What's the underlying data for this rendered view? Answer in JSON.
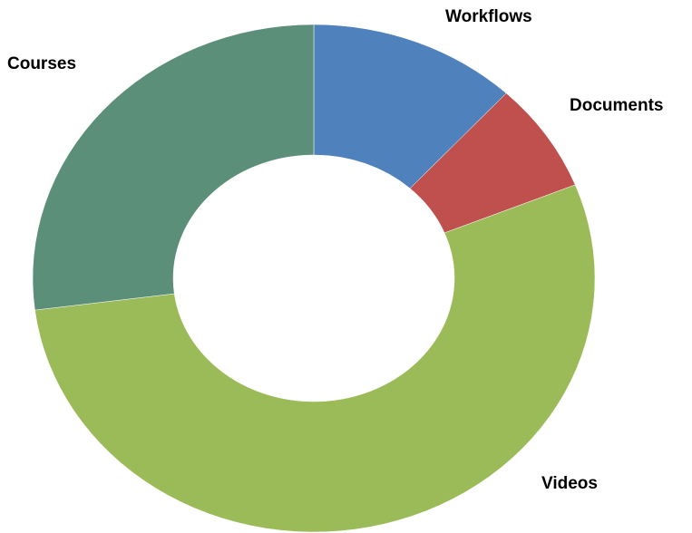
{
  "chart_data": {
    "type": "donut",
    "categories": [
      "Workflows",
      "Documents",
      "Videos",
      "Courses"
    ],
    "values": [
      12,
      7,
      54,
      27
    ],
    "colors": [
      "#4f81bd",
      "#c0504d",
      "#9bbb59",
      "#5b8f7a"
    ]
  }
}
